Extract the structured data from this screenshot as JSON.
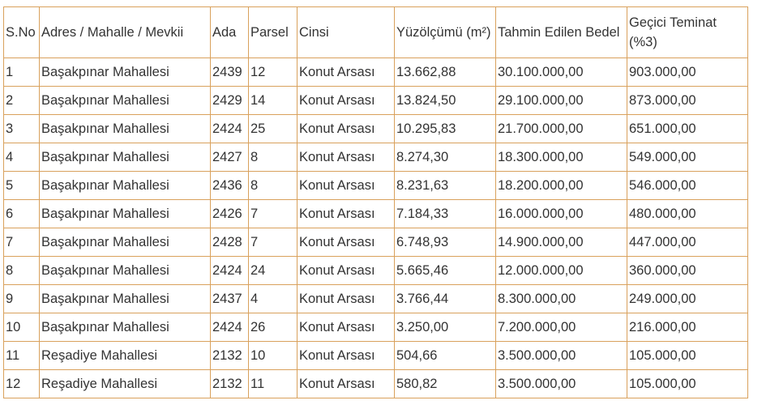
{
  "table": {
    "headers": [
      "S.No",
      "Adres / Mahalle / Mevkii",
      "Ada",
      "Parsel",
      "Cinsi",
      "Yüzölçümü (m²)",
      "Tahmin Edilen Bedel",
      "Geçici Teminat (%3)"
    ],
    "rows": [
      [
        "1",
        "Başakpınar Mahallesi",
        "2439",
        "12",
        "Konut Arsası",
        "13.662,88",
        "30.100.000,00",
        "903.000,00"
      ],
      [
        "2",
        "Başakpınar Mahallesi",
        "2429",
        "14",
        "Konut Arsası",
        "13.824,50",
        "29.100.000,00",
        "873.000,00"
      ],
      [
        "3",
        "Başakpınar Mahallesi",
        "2424",
        "25",
        "Konut Arsası",
        "10.295,83",
        "21.700.000,00",
        "651.000,00"
      ],
      [
        "4",
        "Başakpınar Mahallesi",
        "2427",
        "8",
        "Konut Arsası",
        "8.274,30",
        "18.300.000,00",
        "549.000,00"
      ],
      [
        "5",
        "Başakpınar Mahallesi",
        "2436",
        "8",
        "Konut Arsası",
        "8.231,63",
        "18.200.000,00",
        "546.000,00"
      ],
      [
        "6",
        "Başakpınar Mahallesi",
        "2426",
        "7",
        "Konut Arsası",
        "7.184,33",
        "16.000.000,00",
        "480.000,00"
      ],
      [
        "7",
        "Başakpınar Mahallesi",
        "2428",
        "7",
        "Konut Arsası",
        "6.748,93",
        "14.900.000,00",
        "447.000,00"
      ],
      [
        "8",
        "Başakpınar Mahallesi",
        "2424",
        "24",
        "Konut Arsası",
        "5.665,46",
        "12.000.000,00",
        "360.000,00"
      ],
      [
        "9",
        "Başakpınar Mahallesi",
        "2437",
        "4",
        "Konut Arsası",
        "3.766,44",
        "8.300.000,00",
        "249.000,00"
      ],
      [
        "10",
        "Başakpınar Mahallesi",
        "2424",
        "26",
        "Konut Arsası",
        "3.250,00",
        "7.200.000,00",
        "216.000,00"
      ],
      [
        "11",
        "Reşadiye Mahallesi",
        "2132",
        "10",
        "Konut Arsası",
        "504,66",
        "3.500.000,00",
        "105.000,00"
      ],
      [
        "12",
        "Reşadiye Mahallesi",
        "2132",
        "11",
        "Konut Arsası",
        "580,82",
        "3.500.000,00",
        "105.000,00"
      ]
    ],
    "border_color": "#d9a15c",
    "text_color": "#333333"
  }
}
